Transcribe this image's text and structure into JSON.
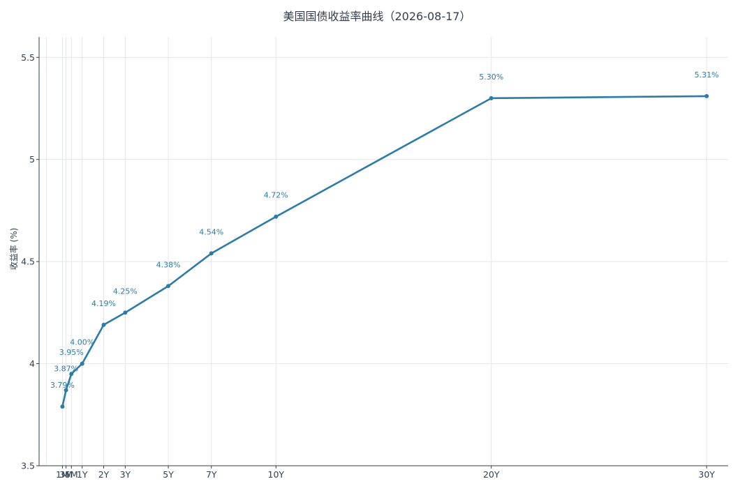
{
  "chart_data": {
    "type": "line",
    "title": "美国国债收益率曲线（2026-08-17）",
    "xlabel": "",
    "ylabel": "收益率 (%)",
    "ylim": [
      3.5,
      5.6
    ],
    "y_ticks": [
      3.5,
      4,
      4.5,
      5,
      5.5
    ],
    "y_tick_labels": [
      "3.5",
      "4",
      "4.5",
      "5",
      "5.5"
    ],
    "x_scale": "maturity in months",
    "categories": [
      "1M",
      "3M",
      "6M",
      "1Y",
      "2Y",
      "3Y",
      "5Y",
      "7Y",
      "10Y",
      "20Y",
      "30Y"
    ],
    "x": [
      1,
      3,
      6,
      12,
      24,
      36,
      60,
      84,
      120,
      240,
      360
    ],
    "x_grid": [
      -8,
      1,
      3,
      6,
      12,
      24,
      36,
      60,
      84,
      120,
      240,
      360
    ],
    "xlim": [
      -12,
      372
    ],
    "series": [
      {
        "values": [
          3.79,
          3.87,
          3.95,
          4.0,
          4.19,
          4.25,
          4.38,
          4.54,
          4.72,
          5.3,
          5.31
        ],
        "labels": [
          "3.79%",
          "3.87%",
          "3.95%",
          "4.00%",
          "4.19%",
          "4.25%",
          "4.38%",
          "4.54%",
          "4.72%",
          "5.30%",
          "5.31%"
        ],
        "color": "#2e7ba6"
      }
    ],
    "grid": true,
    "legend": "none"
  }
}
